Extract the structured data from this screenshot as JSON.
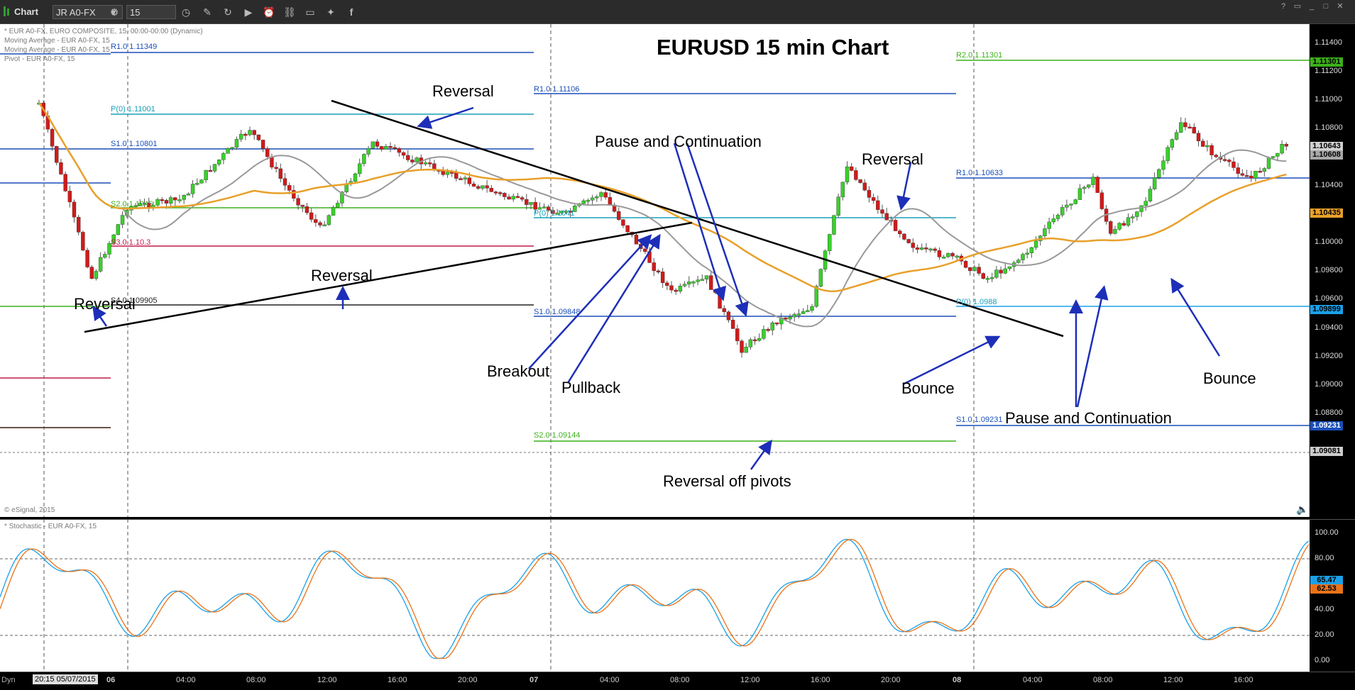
{
  "toolbar": {
    "app_title": "Chart",
    "symbol": "JR A0-FX",
    "interval": "15",
    "icons": [
      "gear-icon",
      "clock-icon",
      "pencil-icon",
      "refresh-icon",
      "play-icon",
      "alarm-icon",
      "link-icon",
      "comment-icon",
      "twitter-icon",
      "facebook-icon"
    ]
  },
  "chart_info": {
    "line1": "* EUR A0-FX, EURO COMPOSITE, 15, 00:00-00:00 (Dynamic)",
    "line2": "Moving Average - EUR A0-FX, 15",
    "line3": "Moving Average - EUR A0-FX, 15",
    "line4": "Pivot - EUR A0-FX, 15",
    "copyright": "© eSignal, 2015"
  },
  "title": "EURUSD 15 min Chart",
  "annotations": {
    "reversal_1": "Reversal",
    "reversal_2": "Reversal",
    "reversal_3": "Reversal",
    "reversal_4": "Reversal",
    "pause_1": "Pause and Continuation",
    "pause_2": "Pause and Continuation",
    "breakout": "Breakout",
    "pullback": "Pullback",
    "reversal_pivots": "Reversal off pivots",
    "bounce_1": "Bounce",
    "bounce_2": "Bounce"
  },
  "pivots": {
    "day1_r1": "R1.0 1.11349",
    "day1_p": "P(0) 1.11001",
    "day1_s1": "S1.0 1.10801",
    "day1_s2": "S2.0 1.1045",
    "day1_s3": "S3.0 1.10.3",
    "day1_s4": "S4.0 1.09905",
    "day2_r1": "R1.0 1.11106",
    "day2_p": "P(0) 1.1041",
    "day2_s1": "S1.0 1.09848",
    "day2_s2": "S2.0 1.09144",
    "day3_r2": "R2.0 1.11301",
    "day3_r1": "R1.0 1.10633",
    "day3_p": "P(0) 1.0988",
    "day3_s1": "S1.0 1.09231"
  },
  "price_axis": [
    "1.11400",
    "1.11200",
    "1.11000",
    "1.10800",
    "1.10600",
    "1.10400",
    "1.10200",
    "1.10000",
    "1.09800",
    "1.09600",
    "1.09400",
    "1.09200",
    "1.09000",
    "1.08800"
  ],
  "price_flags": {
    "r2": "1.11301",
    "last": "1.10643",
    "last2": "1.10608",
    "ma": "1.10435",
    "p": "1.09899",
    "s1": "1.09231",
    "low": "1.09081"
  },
  "stoch": {
    "label": "* Stochastic - EUR A0-FX, 15",
    "ticks": [
      "100.00",
      "80.00",
      "60.00",
      "40.00",
      "20.00",
      "0.00"
    ],
    "flag_k": "65.47",
    "flag_d": "62.53"
  },
  "time_axis": {
    "cursor_label": "20:15 05/07/2015",
    "dyn": "Dyn",
    "labels": [
      "06",
      "04:00",
      "08:00",
      "12:00",
      "16:00",
      "20:00",
      "07",
      "04:00",
      "08:00",
      "12:00",
      "16:00",
      "20:00",
      "08",
      "04:00",
      "08:00",
      "12:00",
      "16:00"
    ]
  },
  "colors": {
    "up_candle": "#39d12b",
    "down_candle": "#d11a1a",
    "ma_fast": "#999999",
    "ma_slow": "#e8a02a",
    "arrow": "#1d2fb8",
    "trendline": "#000000"
  },
  "chart_data": {
    "type": "line",
    "title": "EURUSD 15 min Chart",
    "ylim": [
      1.0878,
      1.1146
    ],
    "close_path_x_hours": [
      0,
      3,
      5,
      8,
      10,
      12,
      14,
      16,
      19,
      23,
      25,
      27,
      30,
      32,
      34,
      36,
      38,
      40,
      42,
      44,
      46,
      48,
      50,
      52,
      54,
      56,
      58,
      60,
      61,
      63,
      65,
      67,
      69,
      71
    ],
    "close_path_y": [
      1.1098,
      1.0975,
      1.1025,
      1.103,
      1.1055,
      1.108,
      1.104,
      1.101,
      1.107,
      1.105,
      1.104,
      1.103,
      1.102,
      1.1035,
      1.1,
      1.0965,
      1.0975,
      1.0925,
      1.0945,
      1.0955,
      1.1055,
      1.102,
      1.0995,
      1.099,
      1.0975,
      1.099,
      1.102,
      1.1045,
      1.1005,
      1.103,
      1.1085,
      1.106,
      1.1045,
      1.107
    ]
  }
}
